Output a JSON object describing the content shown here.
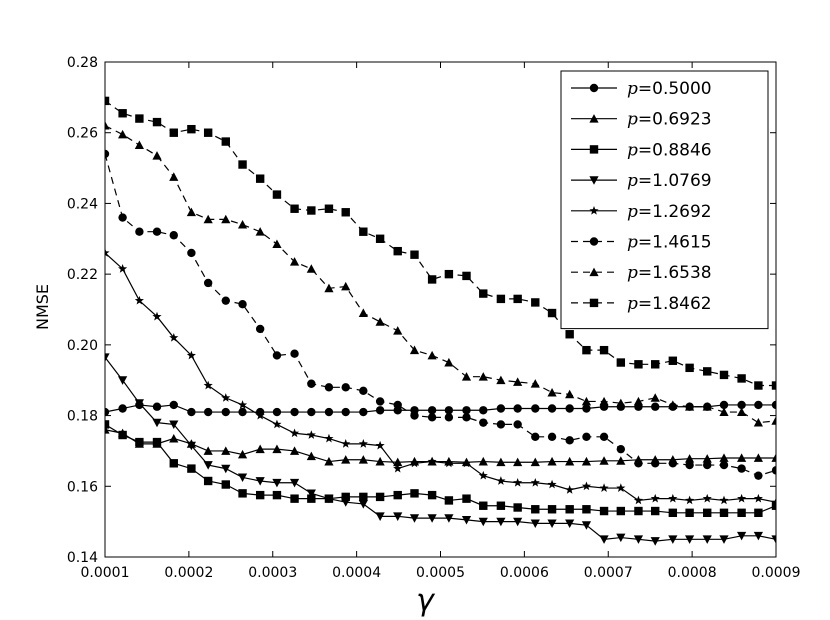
{
  "chart_data": {
    "type": "line",
    "xlabel": "γ",
    "ylabel": "NMSE",
    "xlim": [
      0.0001,
      0.0009
    ],
    "ylim": [
      0.14,
      0.28
    ],
    "xticks": [
      "0.0001",
      "0.0002",
      "0.0003",
      "0.0004",
      "0.0005",
      "0.0006",
      "0.0007",
      "0.0008",
      "0.0009"
    ],
    "yticks": [
      "0.14",
      "0.16",
      "0.18",
      "0.20",
      "0.22",
      "0.24",
      "0.26",
      "0.28"
    ],
    "grid": false,
    "legend_position": "top-right",
    "x": [
      0.0001,
      0.000121,
      0.000141,
      0.000162,
      0.000182,
      0.000203,
      0.000223,
      0.000244,
      0.000264,
      0.000285,
      0.000305,
      0.000326,
      0.000346,
      0.000367,
      0.000387,
      0.000408,
      0.000428,
      0.000449,
      0.000469,
      0.00049,
      0.00051,
      0.000531,
      0.000551,
      0.000572,
      0.000592,
      0.000613,
      0.000633,
      0.000654,
      0.000674,
      0.000695,
      0.000715,
      0.000736,
      0.000756,
      0.000777,
      0.000797,
      0.000818,
      0.000838,
      0.000859,
      0.000879,
      0.0009
    ],
    "series": [
      {
        "name": "p=0.5000",
        "marker": "circle",
        "dash": "solid",
        "values": [
          0.181,
          0.182,
          0.183,
          0.1825,
          0.183,
          0.181,
          0.181,
          0.181,
          0.181,
          0.181,
          0.181,
          0.181,
          0.181,
          0.181,
          0.181,
          0.181,
          0.1815,
          0.1815,
          0.1815,
          0.1815,
          0.1815,
          0.1815,
          0.1815,
          0.182,
          0.182,
          0.182,
          0.182,
          0.182,
          0.182,
          0.1825,
          0.1825,
          0.1825,
          0.1825,
          0.1825,
          0.1825,
          0.1825,
          0.183,
          0.183,
          0.183,
          0.183
        ]
      },
      {
        "name": "p=0.6923",
        "marker": "triangle-up",
        "dash": "solid",
        "values": [
          0.176,
          0.175,
          0.172,
          0.172,
          0.1735,
          0.172,
          0.17,
          0.17,
          0.169,
          0.1705,
          0.1705,
          0.17,
          0.1685,
          0.167,
          0.1675,
          0.1675,
          0.167,
          0.1668,
          0.167,
          0.167,
          0.167,
          0.1668,
          0.167,
          0.1668,
          0.1668,
          0.1668,
          0.167,
          0.167,
          0.167,
          0.1672,
          0.1672,
          0.1675,
          0.1675,
          0.1675,
          0.1678,
          0.1678,
          0.168,
          0.168,
          0.168,
          0.168
        ]
      },
      {
        "name": "p=0.8846",
        "marker": "square",
        "dash": "solid",
        "values": [
          0.1775,
          0.1745,
          0.1725,
          0.1725,
          0.1665,
          0.165,
          0.1615,
          0.1605,
          0.158,
          0.1575,
          0.1575,
          0.1565,
          0.1565,
          0.1565,
          0.157,
          0.157,
          0.157,
          0.1575,
          0.158,
          0.1575,
          0.156,
          0.1565,
          0.1545,
          0.1545,
          0.154,
          0.1535,
          0.1535,
          0.1535,
          0.1535,
          0.153,
          0.153,
          0.153,
          0.153,
          0.1525,
          0.1525,
          0.1525,
          0.1525,
          0.1525,
          0.1525,
          0.1545
        ]
      },
      {
        "name": "p=1.0769",
        "marker": "triangle-down",
        "dash": "solid",
        "values": [
          0.1965,
          0.19,
          0.1835,
          0.178,
          0.1775,
          0.1715,
          0.166,
          0.165,
          0.1625,
          0.1615,
          0.161,
          0.161,
          0.158,
          0.1565,
          0.1555,
          0.155,
          0.1515,
          0.1515,
          0.151,
          0.151,
          0.151,
          0.1505,
          0.15,
          0.15,
          0.15,
          0.1495,
          0.1495,
          0.1495,
          0.149,
          0.145,
          0.1455,
          0.145,
          0.1445,
          0.145,
          0.145,
          0.145,
          0.145,
          0.146,
          0.146,
          0.145
        ]
      },
      {
        "name": "p=1.2692",
        "marker": "star",
        "dash": "solid",
        "values": [
          0.226,
          0.2215,
          0.2125,
          0.208,
          0.202,
          0.197,
          0.1885,
          0.185,
          0.183,
          0.18,
          0.1775,
          0.175,
          0.1745,
          0.1735,
          0.172,
          0.172,
          0.1715,
          0.165,
          0.1665,
          0.167,
          0.1665,
          0.1665,
          0.163,
          0.1615,
          0.161,
          0.161,
          0.1605,
          0.159,
          0.16,
          0.1595,
          0.1595,
          0.156,
          0.1565,
          0.1565,
          0.156,
          0.1565,
          0.156,
          0.1565,
          0.1565,
          0.1555
        ]
      },
      {
        "name": "p=1.4615",
        "marker": "circle",
        "dash": "dashed",
        "values": [
          0.254,
          0.236,
          0.232,
          0.232,
          0.231,
          0.226,
          0.2175,
          0.2125,
          0.2115,
          0.2045,
          0.197,
          0.1975,
          0.189,
          0.188,
          0.188,
          0.187,
          0.184,
          0.183,
          0.18,
          0.1795,
          0.1795,
          0.1795,
          0.178,
          0.1775,
          0.1775,
          0.174,
          0.174,
          0.173,
          0.174,
          0.174,
          0.1705,
          0.1665,
          0.1665,
          0.1665,
          0.166,
          0.166,
          0.166,
          0.165,
          0.163,
          0.1645
        ]
      },
      {
        "name": "p=1.6538",
        "marker": "triangle-up",
        "dash": "dashed",
        "values": [
          0.262,
          0.2595,
          0.2565,
          0.2535,
          0.2475,
          0.2375,
          0.2355,
          0.2355,
          0.234,
          0.232,
          0.2285,
          0.2235,
          0.2215,
          0.216,
          0.2165,
          0.209,
          0.2065,
          0.204,
          0.1985,
          0.197,
          0.195,
          0.191,
          0.191,
          0.19,
          0.1895,
          0.189,
          0.1865,
          0.186,
          0.184,
          0.184,
          0.1835,
          0.184,
          0.185,
          0.183,
          0.1825,
          0.1825,
          0.181,
          0.181,
          0.178,
          0.1785
        ]
      },
      {
        "name": "p=1.8462",
        "marker": "square",
        "dash": "dashed",
        "values": [
          0.269,
          0.2655,
          0.264,
          0.263,
          0.26,
          0.261,
          0.26,
          0.2575,
          0.251,
          0.247,
          0.2425,
          0.2385,
          0.238,
          0.2385,
          0.2375,
          0.232,
          0.23,
          0.2265,
          0.2255,
          0.2185,
          0.22,
          0.2195,
          0.2145,
          0.213,
          0.213,
          0.212,
          0.209,
          0.203,
          0.1985,
          0.1985,
          0.195,
          0.1945,
          0.1945,
          0.1955,
          0.1935,
          0.1925,
          0.1915,
          0.1905,
          0.1885,
          0.1885
        ]
      }
    ]
  }
}
